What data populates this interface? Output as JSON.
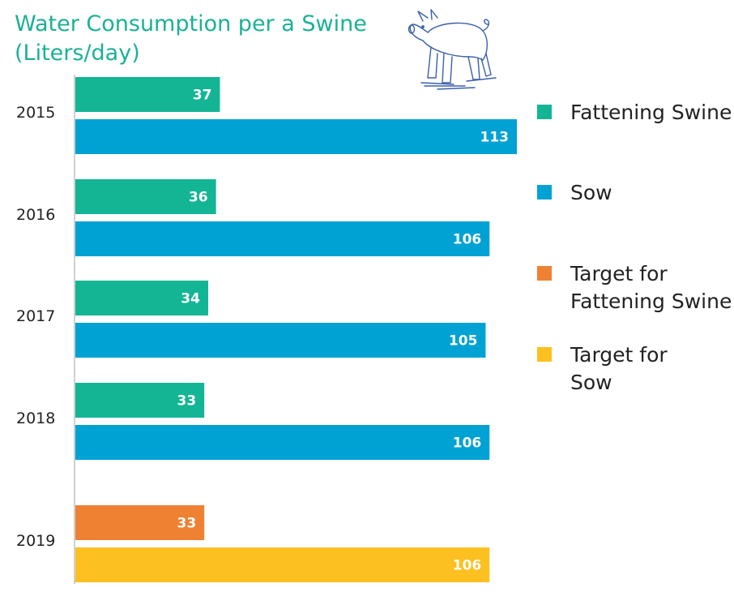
{
  "chart_data": {
    "type": "bar",
    "orientation": "horizontal",
    "title_lines": [
      "Water Consumption per a Swine",
      "(Liters/day)"
    ],
    "categories": [
      "2015",
      "2016",
      "2017",
      "2018",
      "2019"
    ],
    "series": [
      {
        "name": "Fattening Swine",
        "color": "#13B595",
        "values": [
          37,
          36,
          34,
          33,
          null
        ]
      },
      {
        "name": "Sow",
        "color": "#00A2D3",
        "values": [
          113,
          106,
          105,
          106,
          null
        ]
      },
      {
        "name": "Target for Fattening Swine",
        "color": "#EF8133",
        "values": [
          null,
          null,
          null,
          null,
          33
        ]
      },
      {
        "name": "Target for Sow",
        "color": "#FCC120",
        "values": [
          null,
          null,
          null,
          null,
          106
        ]
      }
    ],
    "xlim": [
      0,
      115
    ],
    "grid": false,
    "legend_position": "right",
    "decoration": "pig-icon"
  }
}
